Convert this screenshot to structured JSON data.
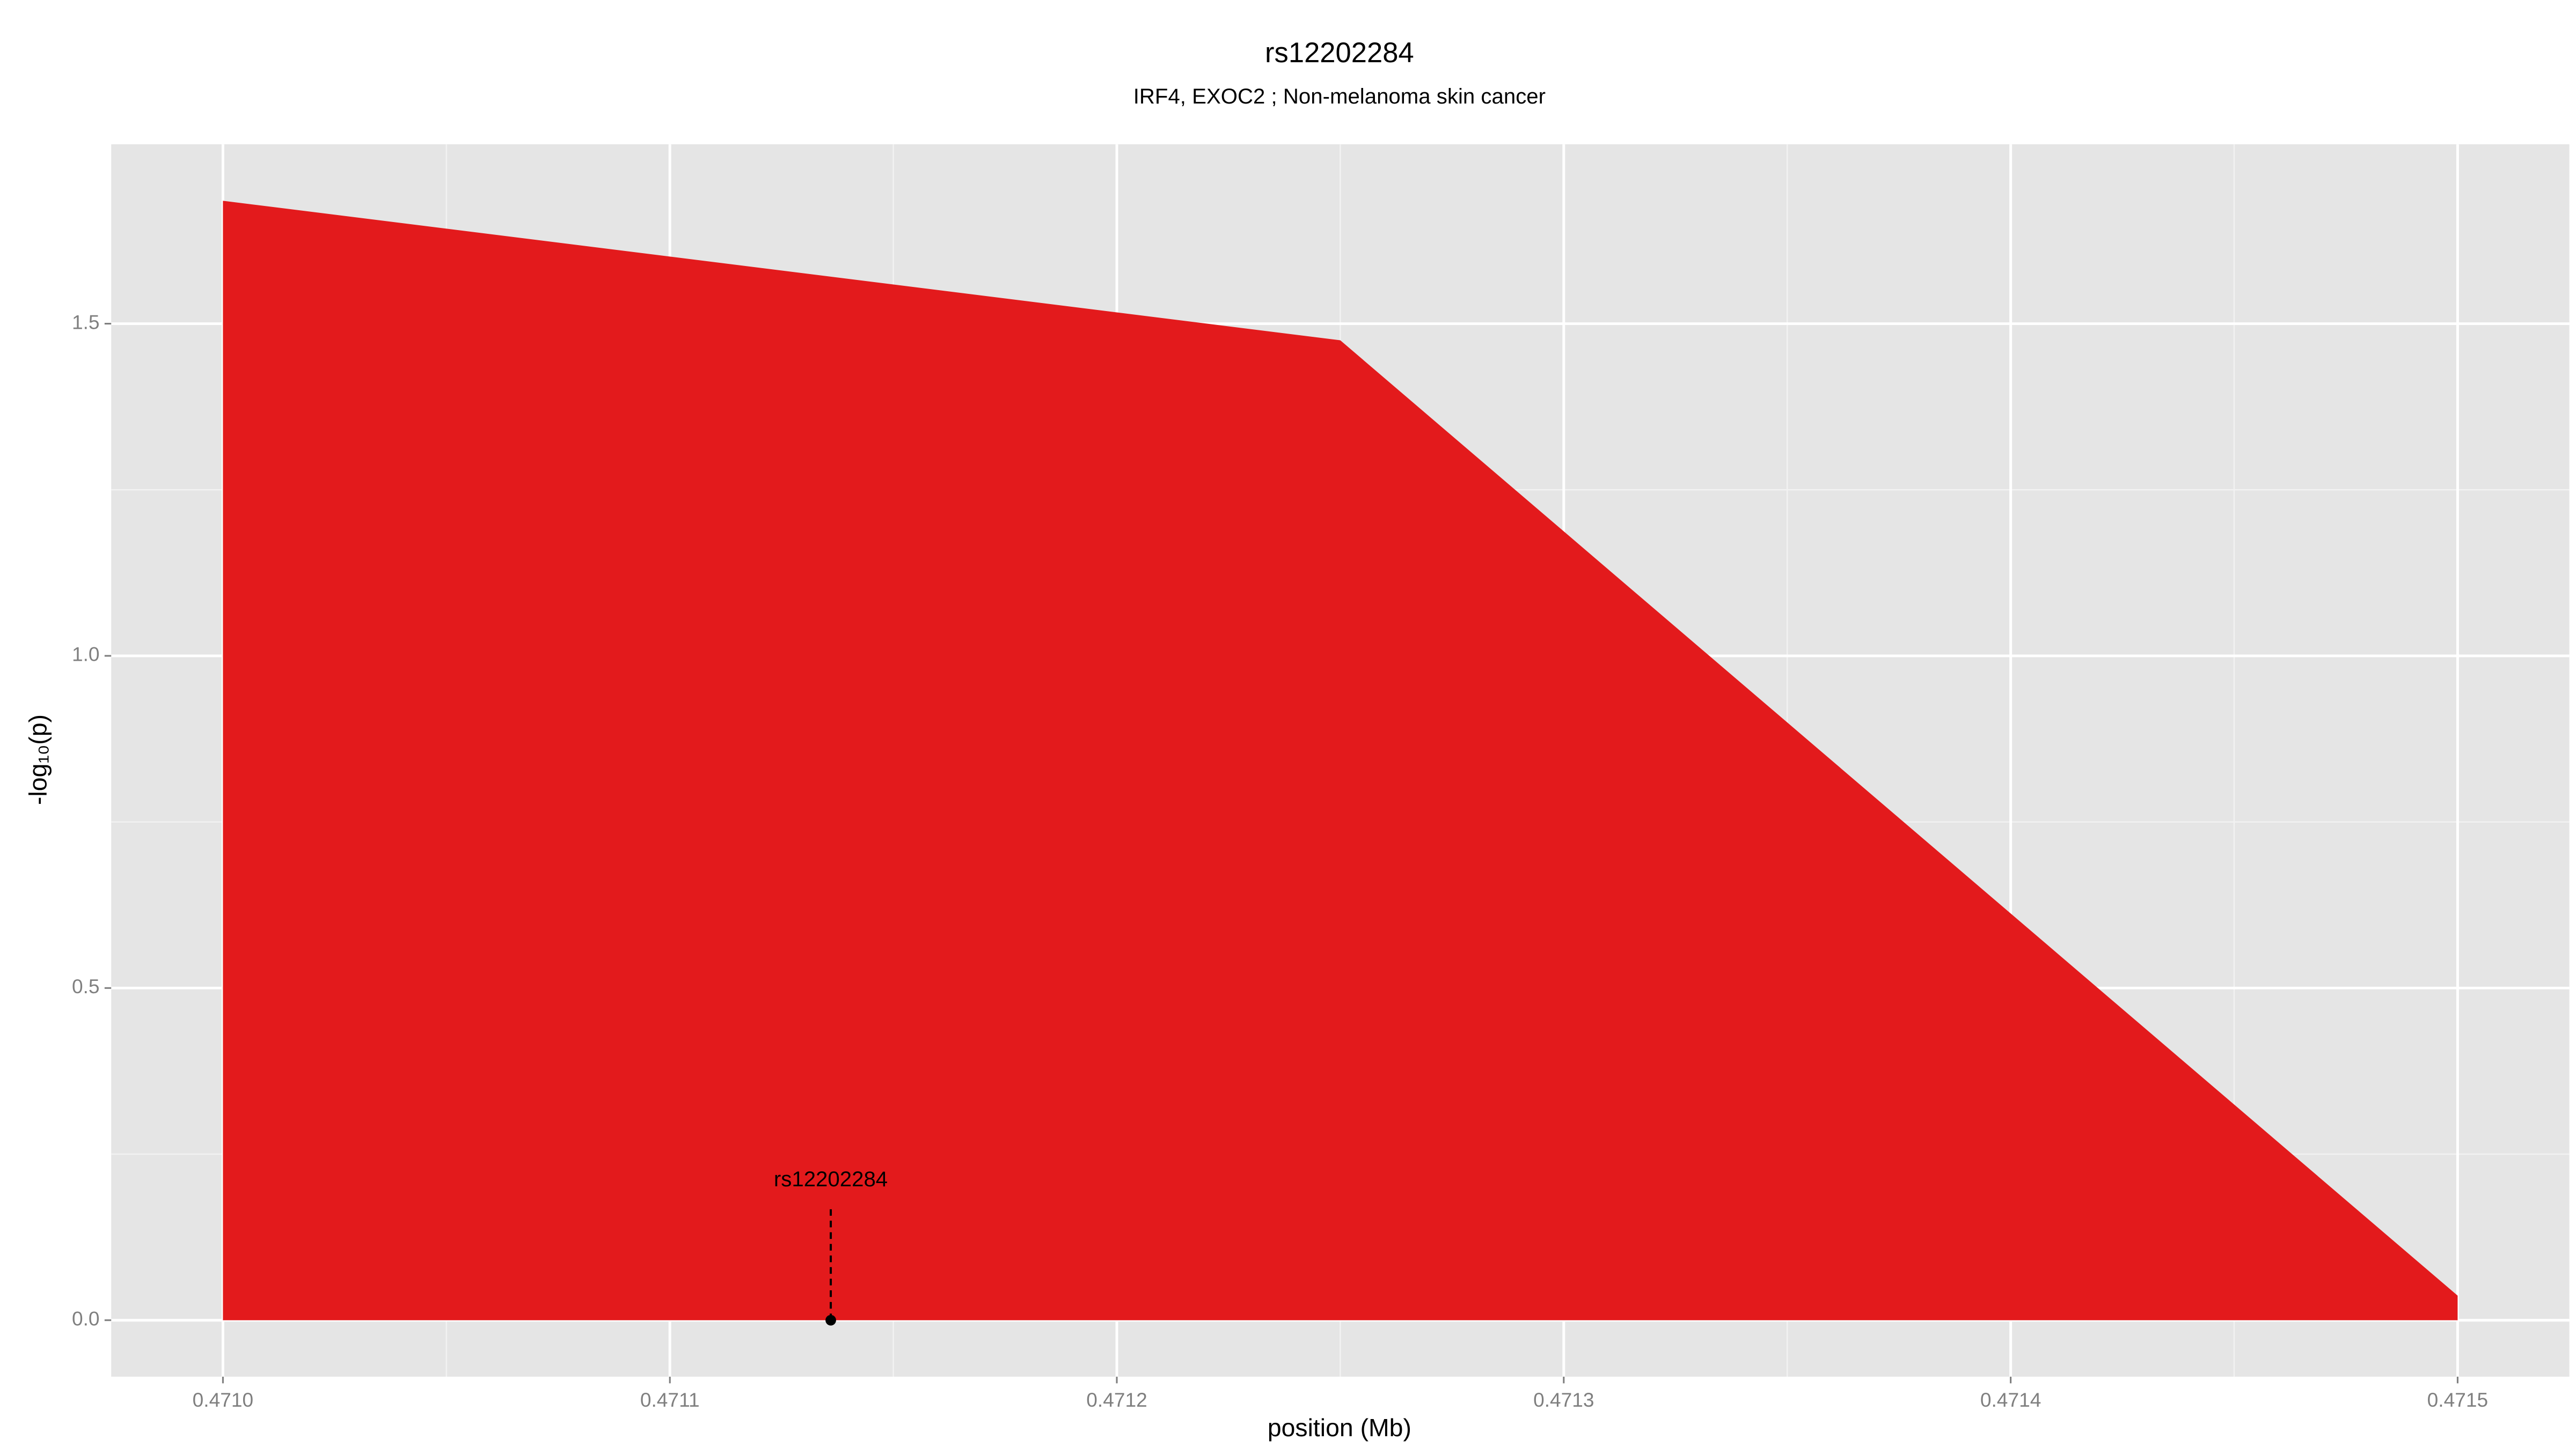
{
  "chart_data": {
    "type": "area",
    "title": "rs12202284",
    "subtitle": "IRF4, EXOC2 ; Non-melanoma skin cancer",
    "xlabel": "position (Mb)",
    "ylabel": "-log₁₀(p)",
    "x": [
      0.471,
      0.47125,
      0.4715
    ],
    "series": [
      {
        "color": "#e31a1c",
        "values": [
          1.685,
          1.475,
          0.037
        ]
      }
    ],
    "xlim": [
      0.470975,
      0.471525
    ],
    "ylim": [
      -0.085,
      1.77
    ],
    "xticks": [
      {
        "value": 0.471,
        "label": "0.4710"
      },
      {
        "value": 0.4711,
        "label": "0.4711"
      },
      {
        "value": 0.4712,
        "label": "0.4712"
      },
      {
        "value": 0.4713,
        "label": "0.4713"
      },
      {
        "value": 0.4714,
        "label": "0.4714"
      },
      {
        "value": 0.4715,
        "label": "0.4715"
      }
    ],
    "yticks": [
      {
        "value": 0,
        "label": "0.0"
      },
      0.5,
      {
        "value": 1,
        "label": "1.0"
      },
      1.5
    ],
    "minor_xticks": [
      0.47105,
      0.47115,
      0.47125,
      0.47135,
      0.47145
    ],
    "minor_yticks": [
      0.25,
      0.75,
      1.25
    ],
    "grid": true,
    "annotations": [
      {
        "label": "rs12202284",
        "x": 0.471136,
        "y": 0,
        "line_top": 0.167,
        "label_y": 0.21
      }
    ]
  }
}
